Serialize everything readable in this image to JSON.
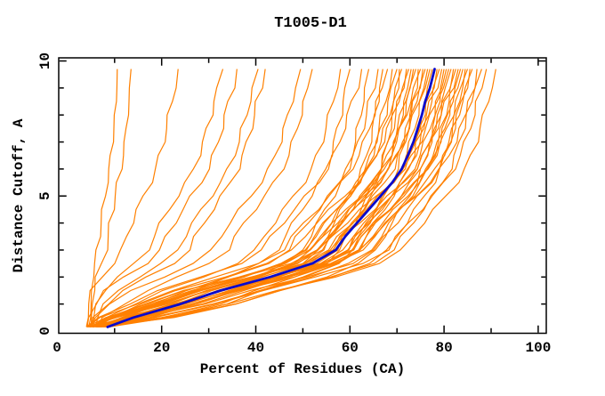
{
  "chart_data": {
    "type": "line",
    "title": "T1005-D1",
    "x_axis": {
      "label": "Percent of Residues (CA)",
      "major_ticks": [
        0,
        20,
        40,
        60,
        80,
        100
      ],
      "minor_ticks": [
        10,
        30,
        50,
        70,
        90
      ],
      "range_shown": [
        -2,
        102
      ]
    },
    "y_axis": {
      "label": "Distance Cutoff, A",
      "major_ticks": [
        0,
        5,
        10
      ],
      "minor_ticks": [
        1,
        2,
        3,
        4,
        6,
        7,
        8,
        9
      ],
      "range_shown": [
        -0.1,
        10.1
      ]
    },
    "grid": false,
    "legend": null,
    "colors": {
      "predictions": "#ff8000",
      "frame": "#000000"
    },
    "highlight_series": {
      "name": "highlighted-model",
      "color": "#0a0acc",
      "points": [
        [
          8.5,
          0.15
        ],
        [
          14,
          0.5
        ],
        [
          24,
          1.0
        ],
        [
          32.5,
          1.5
        ],
        [
          43,
          2.0
        ],
        [
          52,
          2.5
        ],
        [
          57,
          3.0
        ],
        [
          59,
          3.5
        ],
        [
          61.5,
          4.0
        ],
        [
          64,
          4.5
        ],
        [
          66.5,
          5.0
        ],
        [
          69,
          5.5
        ],
        [
          71,
          6.0
        ],
        [
          72.3,
          6.5
        ],
        [
          73.5,
          7.0
        ],
        [
          74.4,
          7.5
        ],
        [
          75.3,
          8.0
        ],
        [
          76,
          8.5
        ],
        [
          77,
          9.0
        ],
        [
          78,
          9.7
        ]
      ]
    },
    "prediction_profile": {
      "y": [
        0.15,
        0.5,
        1.0,
        1.5,
        2.0,
        2.5,
        3.0,
        3.5,
        4.0,
        4.5,
        5.0,
        5.5,
        6.0,
        6.5,
        7.0,
        7.5,
        8.0,
        8.5,
        9.0,
        9.7
      ],
      "u": [
        0,
        0.079,
        0.223,
        0.345,
        0.496,
        0.626,
        0.698,
        0.727,
        0.763,
        0.799,
        0.835,
        0.871,
        0.899,
        0.918,
        0.935,
        0.948,
        0.961,
        0.971,
        0.986,
        1
      ]
    },
    "prediction_curve_format": [
      "start_x_percent",
      "top_x_percent",
      "shape_exponent"
    ],
    "prediction_curves": [
      [
        4.5,
        10.5,
        3.2
      ],
      [
        5.0,
        13.5,
        2.8
      ],
      [
        4.0,
        23.5,
        2.6
      ],
      [
        5.5,
        33.0,
        2.4
      ],
      [
        4.2,
        36.0,
        2.0
      ],
      [
        6.0,
        40.5,
        1.9
      ],
      [
        5.0,
        42.0,
        1.6
      ],
      [
        4.5,
        49.5,
        1.5
      ],
      [
        6.5,
        52.0,
        1.4
      ],
      [
        5.0,
        58.0,
        1.15
      ],
      [
        7.0,
        60.0,
        0.95
      ],
      [
        4.0,
        62.5,
        1.25
      ],
      [
        8.0,
        64.0,
        0.8
      ],
      [
        5.5,
        66.0,
        1.05
      ],
      [
        6.8,
        67.0,
        0.7
      ],
      [
        4.3,
        68.0,
        1.2
      ],
      [
        7.5,
        69.0,
        0.9
      ],
      [
        5.2,
        70.0,
        1.0
      ],
      [
        6.1,
        70.5,
        0.6
      ],
      [
        8.2,
        71.0,
        1.1
      ],
      [
        4.8,
        72.0,
        0.85
      ],
      [
        6.6,
        72.5,
        1.3
      ],
      [
        5.4,
        73.0,
        0.75
      ],
      [
        7.2,
        73.5,
        1.0
      ],
      [
        4.2,
        74.0,
        0.95
      ],
      [
        8.8,
        74.5,
        0.65
      ],
      [
        5.8,
        75.0,
        1.15
      ],
      [
        6.3,
        75.5,
        0.9
      ],
      [
        4.6,
        76.0,
        1.05
      ],
      [
        7.8,
        76.5,
        0.8
      ],
      [
        5.1,
        77.0,
        1.2
      ],
      [
        6.9,
        77.5,
        0.7
      ],
      [
        4.4,
        78.5,
        1.0
      ],
      [
        8.4,
        79.0,
        0.9
      ],
      [
        5.6,
        79.5,
        1.1
      ],
      [
        6.2,
        80.0,
        0.6
      ],
      [
        7.4,
        80.5,
        0.95
      ],
      [
        4.9,
        81.0,
        1.25
      ],
      [
        5.3,
        81.5,
        0.85
      ],
      [
        8.1,
        82.0,
        1.05
      ],
      [
        6.7,
        82.5,
        0.75
      ],
      [
        4.1,
        83.0,
        1.15
      ],
      [
        7.1,
        83.5,
        0.9
      ],
      [
        5.9,
        84.0,
        1.0
      ],
      [
        6.4,
        84.5,
        0.65
      ],
      [
        8.6,
        85.0,
        1.1
      ],
      [
        4.7,
        85.5,
        0.8
      ],
      [
        5.5,
        86.0,
        0.95
      ],
      [
        7.6,
        87.0,
        0.7
      ],
      [
        6.0,
        88.0,
        1.05
      ],
      [
        8.9,
        89.0,
        0.85
      ],
      [
        7.0,
        91.0,
        0.75
      ]
    ]
  }
}
